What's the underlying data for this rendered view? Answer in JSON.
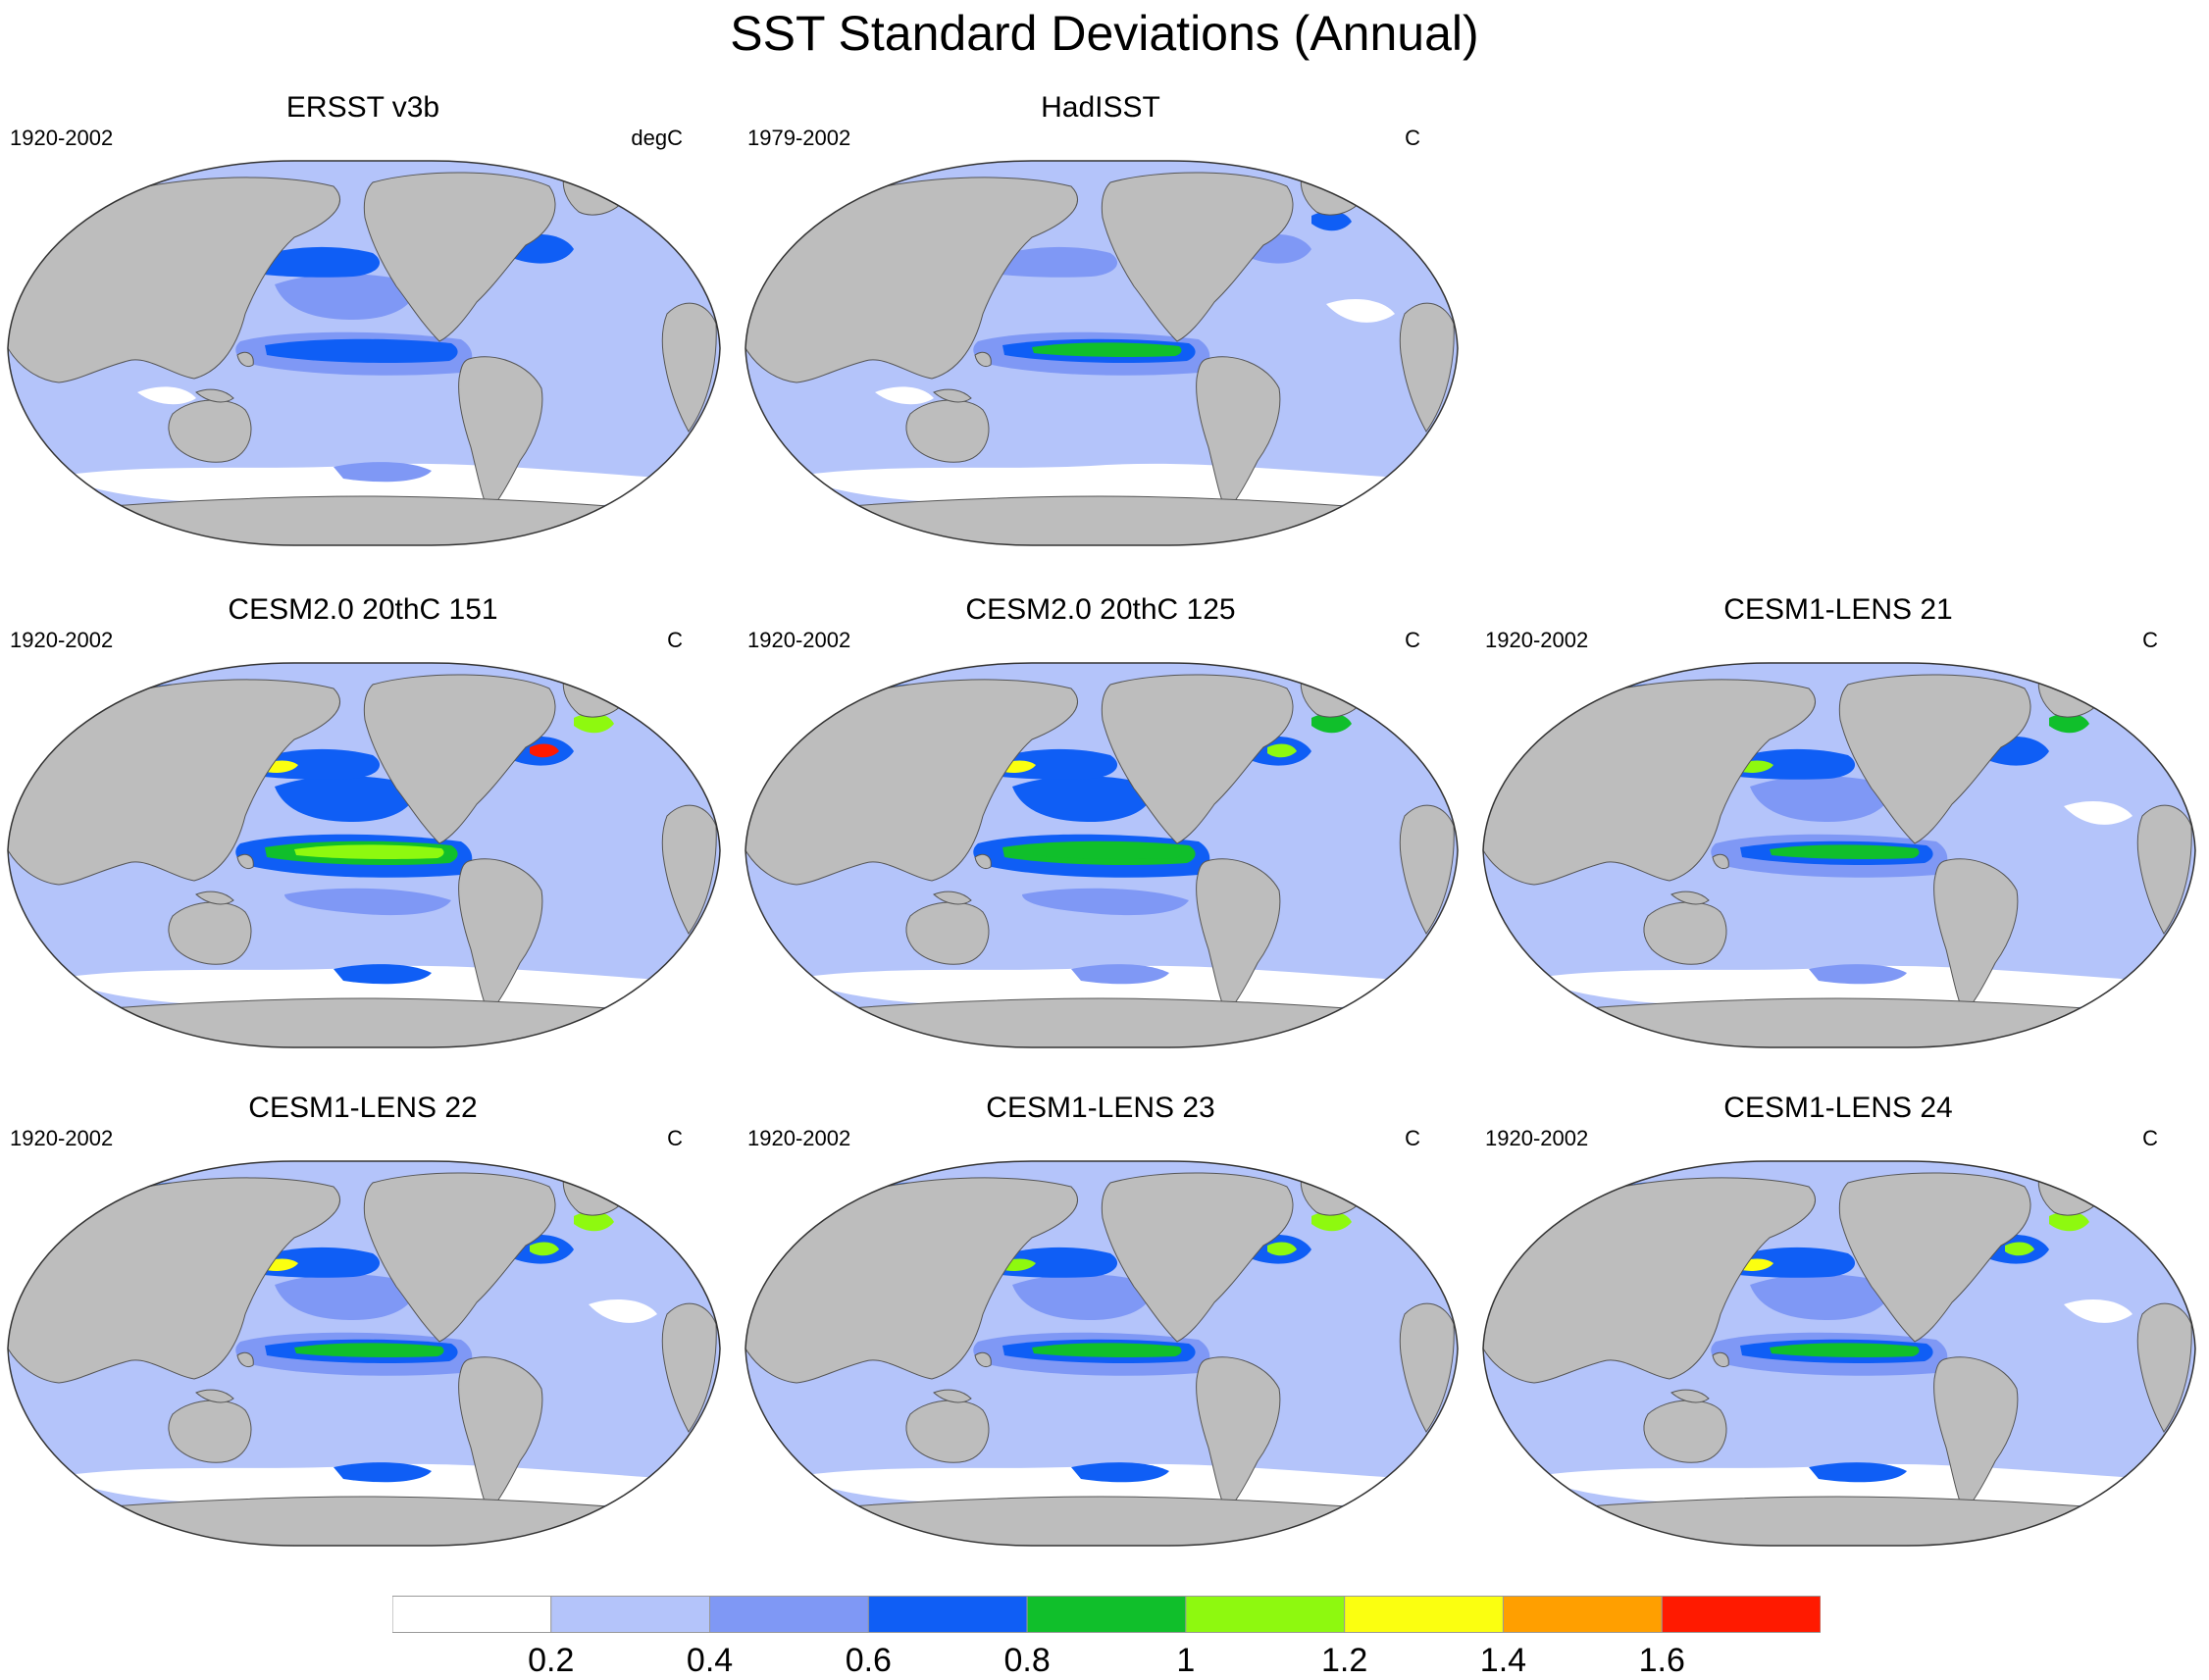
{
  "title": "SST Standard Deviations (Annual)",
  "colors": {
    "land": "#bdbdbd",
    "levels": [
      "#ffffff",
      "#b4c4fa",
      "#7f98f5",
      "#0f5ef5",
      "#10bf2b",
      "#8ef90f",
      "#fbff10",
      "#ff9f00",
      "#ff1a00"
    ]
  },
  "panels": [
    {
      "title": "ERSST v3b",
      "period": "1920-2002",
      "units": "degC"
    },
    {
      "title": "HadISST",
      "period": "1979-2002",
      "units": "C"
    },
    {
      "title": "CESM2.0 20thC 151",
      "period": "1920-2002",
      "units": "C"
    },
    {
      "title": "CESM2.0 20thC 125",
      "period": "1920-2002",
      "units": "C"
    },
    {
      "title": "CESM1-LENS 21",
      "period": "1920-2002",
      "units": "C"
    },
    {
      "title": "CESM1-LENS 22",
      "period": "1920-2002",
      "units": "C"
    },
    {
      "title": "CESM1-LENS 23",
      "period": "1920-2002",
      "units": "C"
    },
    {
      "title": "CESM1-LENS 24",
      "period": "1920-2002",
      "units": "C"
    }
  ],
  "colorbar": {
    "labels": [
      "0.2",
      "0.4",
      "0.6",
      "0.8",
      "1",
      "1.2",
      "1.4",
      "1.6"
    ]
  }
}
